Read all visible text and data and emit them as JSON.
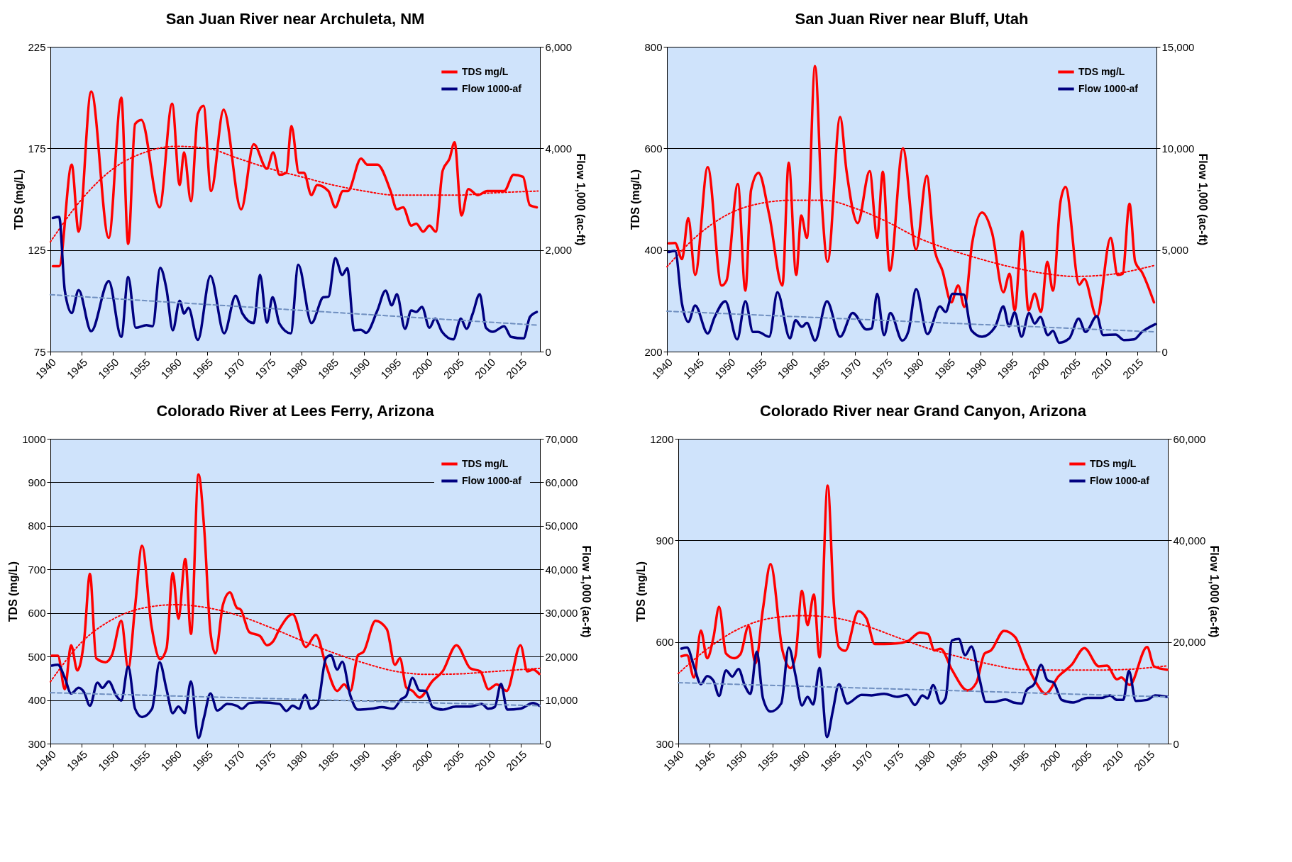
{
  "chart_data": [
    {
      "type": "line",
      "title": "San Juan River near Archuleta, NM",
      "ylabel": "TDS (mg/L)",
      "y2label": "Flow 1,000 (ac-ft)",
      "xlim": [
        1940,
        2018
      ],
      "xticks": [
        1940,
        1945,
        1950,
        1955,
        1960,
        1965,
        1970,
        1975,
        1980,
        1985,
        1990,
        1995,
        2000,
        2005,
        2010,
        2015
      ],
      "ylim": [
        75,
        225
      ],
      "yticks": [
        75,
        125,
        175,
        225
      ],
      "y2lim": [
        0,
        6000
      ],
      "y2ticks": [
        {
          "value": 0,
          "label": "0"
        },
        {
          "value": 2000,
          "label": "2,000"
        },
        {
          "value": 4000,
          "label": "4,000"
        },
        {
          "value": 6000,
          "label": "6,000"
        }
      ],
      "grid": "y",
      "legend": "top right",
      "series": [
        {
          "name": "TDS mg/L",
          "color": "#ff0000",
          "x": [
            1940.4,
            1941.4,
            1943.4,
            1944.5,
            1946.5,
            1949.3,
            1951.3,
            1952.4,
            1953.5,
            1954.5,
            1957.4,
            1959.4,
            1960.6,
            1961.3,
            1962.4,
            1963.5,
            1964.4,
            1965.6,
            1967.6,
            1970.4,
            1972.4,
            1974.5,
            1975.5,
            1976.5,
            1977.6,
            1978.4,
            1979.6,
            1980.4,
            1981.6,
            1982.5,
            1984.3,
            1985.4,
            1986.6,
            1987.4,
            1989.5,
            1990.5,
            1992.1,
            1994.2,
            1995.2,
            1996.2,
            1997.5,
            1998.3,
            1999.4,
            2000.4,
            2001.4,
            2002.5,
            2003.6,
            2004.4,
            2005.5,
            2006.6,
            2008.1,
            2009.6,
            2012.3,
            2013.8,
            2015.3,
            2016.4,
            2017.5
          ],
          "values": [
            117,
            117,
            167,
            134,
            203,
            131,
            200,
            128,
            187,
            189,
            146,
            197,
            157,
            173,
            149,
            192,
            196,
            154,
            194,
            145,
            177,
            165,
            173,
            162,
            163,
            186,
            163,
            163,
            152,
            157,
            154,
            146,
            154,
            154,
            170,
            167,
            167,
            154,
            145,
            146,
            137,
            138,
            134,
            137,
            134,
            164,
            170,
            178,
            142,
            155,
            152,
            154,
            154,
            162,
            161,
            147,
            146
          ]
        },
        {
          "name": "Flow  1000-af",
          "color": "#000080",
          "axis": "y2",
          "x": [
            1940.4,
            1941.4,
            1942.3,
            1943.4,
            1944.5,
            1946.5,
            1949.3,
            1951.3,
            1952.4,
            1953.6,
            1955.3,
            1956.3,
            1957.5,
            1958.5,
            1959.5,
            1960.6,
            1961.3,
            1962.0,
            1963.5,
            1965.5,
            1967.7,
            1969.5,
            1970.6,
            1972.4,
            1973.4,
            1974.5,
            1975.4,
            1976.5,
            1978.3,
            1979.5,
            1981.6,
            1983.5,
            1984.3,
            1985.4,
            1986.5,
            1987.3,
            1988.4,
            1989.5,
            1990.3,
            1992.1,
            1993.4,
            1994.4,
            1995.2,
            1996.5,
            1997.5,
            1998.3,
            1999.2,
            2000.4,
            2001.3,
            2002.4,
            2004.2,
            2005.4,
            2006.3,
            2007.3,
            2008.4,
            2009.4,
            2010.5,
            2012.3,
            2013.4,
            2015.4,
            2016.4,
            2017.5
          ],
          "values": [
            2630,
            2650,
            1200,
            760,
            1210,
            400,
            1390,
            290,
            1470,
            470,
            520,
            500,
            1650,
            1230,
            420,
            1000,
            750,
            860,
            230,
            1490,
            360,
            1100,
            750,
            560,
            1510,
            570,
            1070,
            550,
            360,
            1710,
            560,
            1070,
            1080,
            1840,
            1510,
            1640,
            420,
            430,
            370,
            810,
            1200,
            910,
            1130,
            450,
            810,
            780,
            880,
            470,
            650,
            390,
            240,
            650,
            450,
            750,
            1130,
            470,
            390,
            500,
            290,
            260,
            680,
            780
          ]
        },
        {
          "type": "line",
          "color": "#ff0000",
          "line_style": "dotted",
          "x": [
            1940,
            1945,
            1950,
            1955,
            1960,
            1965,
            1970,
            1975,
            1980,
            1985,
            1990,
            1995,
            2000,
            2005,
            2010,
            2017.7
          ],
          "values": [
            129,
            150,
            165,
            173,
            176,
            175,
            170,
            165,
            161,
            157,
            154,
            152,
            152,
            152,
            153,
            154
          ]
        },
        {
          "type": "line",
          "color": "#6f8fc0",
          "line_style": "dashed",
          "axis": "y2",
          "x": [
            1940,
            2017.7
          ],
          "values": [
            1120,
            520
          ]
        }
      ]
    },
    {
      "type": "line",
      "title": "San Juan River near Bluff, Utah",
      "ylabel": "TDS (mg/L)",
      "y2label": "Flow 1,000 (ac-ft)",
      "xlim": [
        1940,
        2018
      ],
      "xticks": [
        1940,
        1945,
        1950,
        1955,
        1960,
        1965,
        1970,
        1975,
        1980,
        1985,
        1990,
        1995,
        2000,
        2005,
        2010,
        2015
      ],
      "ylim": [
        200,
        800
      ],
      "yticks": [
        200,
        400,
        600,
        800
      ],
      "y2lim": [
        0,
        15000
      ],
      "y2ticks": [
        {
          "value": 0,
          "label": "0"
        },
        {
          "value": 5000,
          "label": "5,000"
        },
        {
          "value": 10000,
          "label": "10,000"
        },
        {
          "value": 15000,
          "label": "15,000"
        }
      ],
      "grid": "y",
      "legend": "top right",
      "series": [
        {
          "name": "TDS mg/L",
          "color": "#ff0000",
          "x": [
            1940.3,
            1941.3,
            1942.4,
            1943.4,
            1944.5,
            1946.5,
            1948.7,
            1949.5,
            1951.3,
            1952.5,
            1953.4,
            1954.6,
            1956.3,
            1958.4,
            1959.4,
            1960.6,
            1961.4,
            1962.3,
            1963.6,
            1964.7,
            1965.6,
            1967.6,
            1968.6,
            1970.4,
            1972.3,
            1973.5,
            1974.4,
            1975.5,
            1977.6,
            1979.7,
            1981.4,
            1982.6,
            1983.9,
            1985.3,
            1986.4,
            1987.4,
            1988.6,
            1990.2,
            1991.8,
            1993.6,
            1994.6,
            1995.4,
            1996.6,
            1997.6,
            1998.6,
            1999.6,
            2000.6,
            2001.5,
            2002.7,
            2003.5,
            2005.7,
            2006.5,
            2008.5,
            2010.7,
            2011.8,
            2012.6,
            2013.7,
            2014.6,
            2015.7,
            2017.6
          ],
          "values": [
            413,
            414,
            382,
            463,
            351,
            563,
            330,
            340,
            530,
            320,
            518,
            552,
            469,
            330,
            572,
            351,
            468,
            424,
            762,
            489,
            377,
            662,
            557,
            453,
            555,
            424,
            554,
            359,
            600,
            401,
            546,
            404,
            359,
            297,
            330,
            288,
            411,
            474,
            434,
            317,
            353,
            281,
            437,
            281,
            314,
            278,
            377,
            320,
            495,
            524,
            332,
            343,
            268,
            424,
            351,
            353,
            491,
            377,
            356,
            297
          ]
        },
        {
          "name": "Flow  1000-af",
          "color": "#000080",
          "axis": "y2",
          "x": [
            1940.3,
            1941.3,
            1942.4,
            1943.4,
            1944.5,
            1946.5,
            1947.6,
            1949.3,
            1951.2,
            1952.5,
            1953.7,
            1954.5,
            1956.3,
            1957.6,
            1959.6,
            1960.5,
            1961.5,
            1962.3,
            1963.6,
            1965.5,
            1967.6,
            1969.6,
            1971.8,
            1972.6,
            1973.5,
            1974.6,
            1975.6,
            1977.5,
            1978.5,
            1979.7,
            1981.5,
            1983.5,
            1984.4,
            1985.5,
            1987.3,
            1988.5,
            1990.2,
            1992.3,
            1993.6,
            1994.5,
            1995.4,
            1996.5,
            1997.7,
            1998.6,
            1999.5,
            2000.7,
            2001.5,
            2002.5,
            2004.1,
            2005.6,
            2006.7,
            2008.5,
            2009.5,
            2011.5,
            2012.8,
            2014.4,
            2015.7,
            2017.8
          ],
          "values": [
            4900,
            4950,
            2350,
            1460,
            2270,
            890,
            1700,
            2480,
            600,
            2480,
            970,
            970,
            730,
            2920,
            650,
            1540,
            1220,
            1410,
            540,
            2480,
            730,
            1900,
            1090,
            1140,
            2840,
            810,
            1900,
            540,
            1020,
            3080,
            860,
            2220,
            1950,
            2840,
            2810,
            1050,
            730,
            1220,
            2220,
            1250,
            1930,
            730,
            1900,
            1380,
            1700,
            810,
            1020,
            440,
            650,
            1620,
            970,
            1740,
            810,
            840,
            570,
            600,
            970,
            1350
          ]
        },
        {
          "type": "line",
          "color": "#ff0000",
          "line_style": "dotted",
          "x": [
            1940,
            1945,
            1950,
            1955,
            1960,
            1965,
            1970,
            1975,
            1980,
            1985,
            1990,
            1995,
            2000,
            2005,
            2010,
            2017.8
          ],
          "values": [
            367,
            430,
            472,
            492,
            498,
            498,
            482,
            456,
            424,
            401,
            382,
            366,
            354,
            348,
            351,
            370
          ]
        },
        {
          "type": "line",
          "color": "#6f8fc0",
          "line_style": "dashed",
          "axis": "y2",
          "x": [
            1940,
            2017.8
          ],
          "values": [
            1990,
            970
          ]
        }
      ]
    },
    {
      "type": "line",
      "title": "Colorado River at Lees Ferry, Arizona",
      "ylabel": "TDS (mg/L)",
      "y2label": "Flow 1,000 (ac-ft)",
      "xlim": [
        1940,
        2018
      ],
      "xticks": [
        1940,
        1945,
        1950,
        1955,
        1960,
        1965,
        1970,
        1975,
        1980,
        1985,
        1990,
        1995,
        2000,
        2005,
        2010,
        2015
      ],
      "ylim": [
        300,
        1000
      ],
      "yticks": [
        300,
        400,
        500,
        600,
        700,
        800,
        900,
        1000
      ],
      "y2lim": [
        0,
        70000
      ],
      "y2ticks": [
        {
          "value": 0,
          "label": "0"
        },
        {
          "value": 10000,
          "label": "10,000"
        },
        {
          "value": 20000,
          "label": "20,000"
        },
        {
          "value": 30000,
          "label": "30,000"
        },
        {
          "value": 40000,
          "label": "40,000"
        },
        {
          "value": 50000,
          "label": "50,000"
        },
        {
          "value": 60000,
          "label": "60,000"
        },
        {
          "value": 70000,
          "label": "70,000"
        }
      ],
      "grid": "y",
      "legend": "top right",
      "series": [
        {
          "name": "TDS mg/L",
          "color": "#ff0000",
          "x": [
            1940.2,
            1941.2,
            1942.3,
            1943.3,
            1944.3,
            1945.4,
            1946.3,
            1947.3,
            1948.8,
            1949.8,
            1951.3,
            1952.4,
            1953.5,
            1954.6,
            1956.1,
            1957.5,
            1958.5,
            1959.5,
            1960.4,
            1961.5,
            1962.4,
            1963.6,
            1964.5,
            1965.5,
            1966.3,
            1967.5,
            1968.6,
            1969.7,
            1970.3,
            1971.7,
            1973.4,
            1974.5,
            1975.5,
            1976.5,
            1978.6,
            1980.7,
            1982.3,
            1983.9,
            1985.7,
            1986.8,
            1987.8,
            1989.0,
            1989.9,
            1991.8,
            1993.6,
            1994.9,
            1995.7,
            1996.7,
            1997.7,
            1998.8,
            2000.9,
            2002.5,
            2004.7,
            2006.9,
            2008.5,
            2009.8,
            2011.1,
            2012.7,
            2014.9,
            2016.0,
            2016.9,
            2017.9
          ],
          "values": [
            502,
            502,
            425,
            526,
            468,
            541,
            690,
            496,
            487,
            503,
            582,
            473,
            615,
            754,
            571,
            494,
            518,
            692,
            587,
            724,
            552,
            918,
            795,
            556,
            507,
            619,
            647,
            612,
            608,
            556,
            547,
            526,
            535,
            563,
            597,
            522,
            550,
            481,
            421,
            436,
            421,
            503,
            511,
            582,
            563,
            481,
            496,
            429,
            421,
            406,
            444,
            466,
            526,
            473,
            466,
            425,
            436,
            421,
            526,
            466,
            470,
            460
          ]
        },
        {
          "name": "Flow  1000-af",
          "color": "#000080",
          "axis": "y2",
          "x": [
            1940.2,
            1941.2,
            1942.3,
            1943.3,
            1944.5,
            1945.4,
            1946.3,
            1947.5,
            1948.3,
            1949.3,
            1950.5,
            1951.3,
            1952.4,
            1953.5,
            1954.6,
            1956.2,
            1957.4,
            1958.5,
            1959.5,
            1960.4,
            1961.4,
            1962.4,
            1963.6,
            1964.5,
            1965.5,
            1966.6,
            1968.2,
            1969.7,
            1970.5,
            1971.7,
            1973.4,
            1976.5,
            1977.6,
            1978.6,
            1979.6,
            1980.6,
            1981.5,
            1982.6,
            1983.9,
            1984.7,
            1985.7,
            1986.5,
            1987.8,
            1989.0,
            1991.2,
            1992.8,
            1994.6,
            1995.9,
            1996.7,
            1997.7,
            1998.8,
            1999.8,
            2000.9,
            2002.5,
            2004.6,
            2006.9,
            2008.7,
            2009.8,
            2010.8,
            2011.8,
            2012.8,
            2014.8,
            2016.9,
            2017.9
          ],
          "values": [
            17900,
            18100,
            15100,
            11500,
            12800,
            11700,
            8700,
            14000,
            12800,
            14300,
            11000,
            9900,
            17700,
            8000,
            6100,
            8000,
            18700,
            12500,
            7000,
            8500,
            7000,
            14300,
            1300,
            6100,
            11500,
            7600,
            9100,
            8700,
            8000,
            9300,
            9500,
            9100,
            7500,
            8700,
            8000,
            11200,
            8000,
            9100,
            19600,
            20300,
            17000,
            18800,
            11000,
            7800,
            8000,
            8400,
            8000,
            10200,
            11000,
            15100,
            12200,
            12100,
            8400,
            7800,
            8500,
            8500,
            9100,
            8000,
            8400,
            13700,
            7800,
            8000,
            9300,
            8700
          ]
        },
        {
          "type": "line",
          "color": "#ff0000",
          "line_style": "dotted",
          "x": [
            1940,
            1945,
            1950,
            1955,
            1960,
            1965,
            1970,
            1975,
            1980,
            1985,
            1990,
            1995,
            2000,
            2005,
            2010,
            2018
          ],
          "values": [
            442,
            533,
            586,
            612,
            619,
            612,
            594,
            567,
            537,
            509,
            485,
            466,
            459,
            460,
            465,
            473
          ]
        },
        {
          "type": "line",
          "color": "#6f8fc0",
          "line_style": "dashed",
          "axis": "y2",
          "x": [
            1940,
            2018
          ],
          "values": [
            11700,
            8700
          ]
        }
      ]
    },
    {
      "type": "line",
      "title": "Colorado River near Grand Canyon, Arizona",
      "ylabel": "TDS (mg/L)",
      "y2label": "Flow 1,000 (ac-ft)",
      "xlim": [
        1940,
        2018
      ],
      "xticks": [
        1940,
        1945,
        1950,
        1955,
        1960,
        1965,
        1970,
        1975,
        1980,
        1985,
        1990,
        1995,
        2000,
        2005,
        2010,
        2015
      ],
      "ylim": [
        300,
        1200
      ],
      "yticks": [
        300,
        600,
        900,
        1200
      ],
      "y2lim": [
        0,
        60000
      ],
      "y2ticks": [
        {
          "value": 0,
          "label": "0"
        },
        {
          "value": 20000,
          "label": "20,000"
        },
        {
          "value": 40000,
          "label": "40,000"
        },
        {
          "value": 60000,
          "label": "60,000"
        }
      ],
      "grid": "y",
      "legend": "top right",
      "series": [
        {
          "name": "TDS mg/L",
          "color": "#ff0000",
          "x": [
            1940.5,
            1941.4,
            1942.5,
            1943.6,
            1944.6,
            1945.6,
            1946.5,
            1947.6,
            1948.9,
            1949.9,
            1951.2,
            1952.3,
            1953.5,
            1954.7,
            1956.6,
            1957.9,
            1958.7,
            1959.7,
            1960.6,
            1961.6,
            1962.5,
            1963.8,
            1964.8,
            1965.6,
            1966.6,
            1968.7,
            1970.0,
            1971.3,
            1972.8,
            1974.9,
            1976.7,
            1978.5,
            1979.8,
            1980.8,
            1981.8,
            1983.6,
            1986.1,
            1987.5,
            1988.8,
            1989.8,
            1991.9,
            1993.7,
            1995.2,
            1997.0,
            1998.5,
            2000.6,
            2002.7,
            2004.7,
            2007.0,
            2008.3,
            2009.9,
            2010.6,
            2011.9,
            2014.7,
            2015.8,
            2017.9
          ],
          "values": [
            558,
            561,
            495,
            634,
            552,
            613,
            704,
            566,
            552,
            564,
            647,
            537,
            699,
            830,
            575,
            523,
            561,
            751,
            650,
            740,
            555,
            1062,
            709,
            585,
            574,
            691,
            669,
            594,
            594,
            596,
            604,
            628,
            623,
            575,
            580,
            518,
            457,
            480,
            566,
            575,
            633,
            614,
            547,
            480,
            447,
            499,
            533,
            582,
            528,
            530,
            490,
            495,
            473,
            585,
            528,
            518
          ]
        },
        {
          "name": "Flow  1000-af",
          "color": "#000080",
          "axis": "y2",
          "x": [
            1940.5,
            1941.4,
            1942.5,
            1943.6,
            1944.6,
            1945.6,
            1946.5,
            1947.6,
            1948.6,
            1949.6,
            1950.6,
            1951.5,
            1952.5,
            1953.5,
            1954.7,
            1956.4,
            1957.6,
            1958.7,
            1959.7,
            1960.6,
            1961.5,
            1962.5,
            1963.7,
            1964.6,
            1965.6,
            1966.9,
            1969.2,
            1970.8,
            1972.8,
            1974.9,
            1976.4,
            1977.7,
            1978.9,
            1979.7,
            1980.6,
            1981.8,
            1982.6,
            1983.6,
            1984.7,
            1985.7,
            1986.7,
            1988.0,
            1989.0,
            1990.3,
            1992.1,
            1993.4,
            1994.7,
            1995.5,
            1996.7,
            1997.8,
            1998.8,
            1999.8,
            2001.1,
            2002.9,
            2005.2,
            2007.5,
            2008.8,
            2009.9,
            2010.9,
            2011.8,
            2012.9,
            2014.7,
            2016.0,
            2017.9
          ],
          "values": [
            18700,
            18900,
            15200,
            11700,
            13300,
            12400,
            9400,
            14400,
            13200,
            14700,
            11400,
            9800,
            18100,
            8900,
            6300,
            7900,
            18900,
            13300,
            7500,
            9200,
            7700,
            14900,
            1300,
            6300,
            11700,
            7900,
            9600,
            9500,
            9800,
            9200,
            9600,
            7600,
            9500,
            8900,
            11500,
            7900,
            9000,
            20300,
            20600,
            17400,
            19100,
            12700,
            8200,
            8200,
            8700,
            8100,
            7900,
            10500,
            11700,
            15500,
            12500,
            12000,
            8600,
            8100,
            9000,
            9000,
            9500,
            8600,
            8600,
            14300,
            8400,
            8600,
            9500,
            9200
          ]
        },
        {
          "type": "line",
          "color": "#ff0000",
          "line_style": "dotted",
          "x": [
            1940,
            1945,
            1950,
            1955,
            1960,
            1965,
            1970,
            1975,
            1980,
            1985,
            1990,
            1995,
            2000,
            2005,
            2010,
            2018
          ],
          "values": [
            507,
            585,
            642,
            671,
            678,
            671,
            647,
            613,
            580,
            555,
            533,
            518,
            517,
            517,
            518,
            530
          ]
        },
        {
          "type": "line",
          "color": "#6f8fc0",
          "line_style": "dashed",
          "axis": "y2",
          "x": [
            1940,
            2018
          ],
          "values": [
            12000,
            9200
          ]
        }
      ]
    }
  ]
}
